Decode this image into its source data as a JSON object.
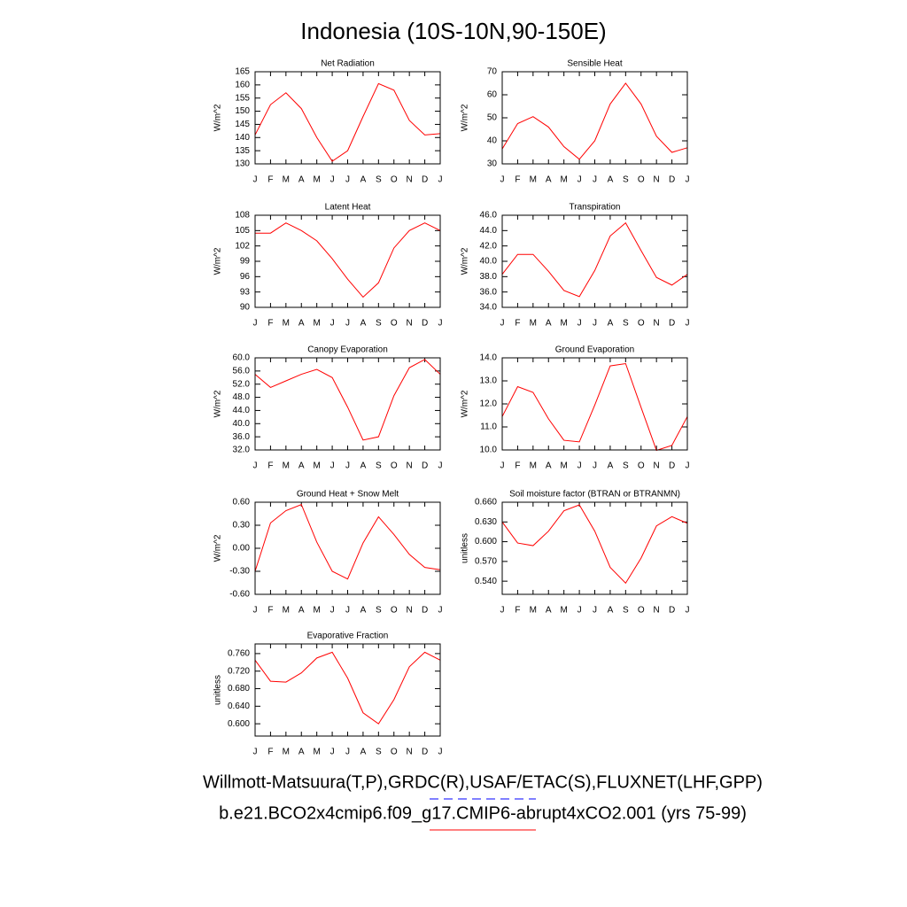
{
  "title": "Indonesia (10S-10N,90-150E)",
  "chart_data": [
    {
      "type": "line",
      "title": "Net Radiation",
      "ylabel": "W/m^2",
      "categories": [
        "J",
        "F",
        "M",
        "A",
        "M",
        "J",
        "J",
        "A",
        "S",
        "O",
        "N",
        "D",
        "J"
      ],
      "values": [
        141,
        152.5,
        157,
        151,
        140,
        131,
        135,
        148,
        160.5,
        158,
        146.5,
        141,
        141.5
      ],
      "color": "#ff0000",
      "ylim": [
        130,
        165
      ],
      "yticks": [
        130,
        135,
        140,
        145,
        150,
        155,
        160,
        165
      ]
    },
    {
      "type": "line",
      "title": "Sensible Heat",
      "ylabel": "W/m^2",
      "categories": [
        "J",
        "F",
        "M",
        "A",
        "M",
        "J",
        "J",
        "A",
        "S",
        "O",
        "N",
        "D",
        "J"
      ],
      "values": [
        36.5,
        47.5,
        50.5,
        46,
        37.5,
        32,
        40,
        56,
        65,
        56,
        42,
        35,
        37
      ],
      "color": "#ff0000",
      "ylim": [
        30,
        70
      ],
      "yticks": [
        30,
        40,
        50,
        60,
        70
      ]
    },
    {
      "type": "line",
      "title": "Latent Heat",
      "ylabel": "W/m^2",
      "categories": [
        "J",
        "F",
        "M",
        "A",
        "M",
        "J",
        "J",
        "A",
        "S",
        "O",
        "N",
        "D",
        "J"
      ],
      "values": [
        104.5,
        104.5,
        106.5,
        105,
        103,
        99.5,
        95.5,
        92,
        94.8,
        101.6,
        105,
        106.5,
        105
      ],
      "color": "#ff0000",
      "ylim": [
        90,
        108
      ],
      "yticks": [
        90,
        93,
        96,
        99,
        102,
        105,
        108
      ]
    },
    {
      "type": "line",
      "title": "Transpiration",
      "ylabel": "W/m^2",
      "categories": [
        "J",
        "F",
        "M",
        "A",
        "M",
        "J",
        "J",
        "A",
        "S",
        "O",
        "N",
        "D",
        "J"
      ],
      "values": [
        38.3,
        40.9,
        40.9,
        38.7,
        36.2,
        35.4,
        38.8,
        43.3,
        45,
        41.4,
        37.9,
        36.9,
        38.3
      ],
      "color": "#ff0000",
      "ylim": [
        34,
        46
      ],
      "yticks": [
        {
          "value": 34,
          "label": "34.0"
        },
        {
          "value": 36,
          "label": "36.0"
        },
        {
          "value": 38,
          "label": "38.0"
        },
        {
          "value": 40,
          "label": "40.0"
        },
        {
          "value": 42,
          "label": "42.0"
        },
        {
          "value": 44,
          "label": "44.0"
        },
        {
          "value": 46,
          "label": "46.0"
        }
      ]
    },
    {
      "type": "line",
      "title": "Canopy Evaporation",
      "ylabel": "W/m^2",
      "categories": [
        "J",
        "F",
        "M",
        "A",
        "M",
        "J",
        "J",
        "A",
        "S",
        "O",
        "N",
        "D",
        "J"
      ],
      "values": [
        55,
        51,
        53,
        55,
        56.5,
        54,
        45,
        35,
        36,
        48.5,
        57,
        59.5,
        55
      ],
      "color": "#ff0000",
      "ylim": [
        32,
        60
      ],
      "yticks": [
        {
          "value": 32,
          "label": "32.0"
        },
        {
          "value": 36,
          "label": "36.0"
        },
        {
          "value": 40,
          "label": "40.0"
        },
        {
          "value": 44,
          "label": "44.0"
        },
        {
          "value": 48,
          "label": "48.0"
        },
        {
          "value": 52,
          "label": "52.0"
        },
        {
          "value": 56,
          "label": "56.0"
        },
        {
          "value": 60,
          "label": "60.0"
        }
      ]
    },
    {
      "type": "line",
      "title": "Ground Evaporation",
      "ylabel": "W/m^2",
      "categories": [
        "J",
        "F",
        "M",
        "A",
        "M",
        "J",
        "J",
        "A",
        "S",
        "O",
        "N",
        "D",
        "J"
      ],
      "values": [
        11.45,
        12.75,
        12.5,
        11.35,
        10.42,
        10.35,
        11.95,
        13.65,
        13.75,
        11.85,
        9.98,
        10.2,
        11.45
      ],
      "color": "#ff0000",
      "ylim": [
        10,
        14
      ],
      "yticks": [
        {
          "value": 10,
          "label": "10.0"
        },
        {
          "value": 11,
          "label": "11.0"
        },
        {
          "value": 12,
          "label": "12.0"
        },
        {
          "value": 13,
          "label": "13.0"
        },
        {
          "value": 14,
          "label": "14.0"
        }
      ]
    },
    {
      "type": "line",
      "title": "Ground Heat + Snow Melt",
      "ylabel": "W/m^2",
      "categories": [
        "J",
        "F",
        "M",
        "A",
        "M",
        "J",
        "J",
        "A",
        "S",
        "O",
        "N",
        "D",
        "J"
      ],
      "values": [
        -0.3,
        0.33,
        0.49,
        0.57,
        0.08,
        -0.3,
        -0.4,
        0.07,
        0.41,
        0.18,
        -0.08,
        -0.25,
        -0.28
      ],
      "color": "#ff0000",
      "ylim": [
        -0.6,
        0.6
      ],
      "yticks": [
        {
          "value": -0.6,
          "label": "-0.60"
        },
        {
          "value": -0.3,
          "label": "-0.30"
        },
        {
          "value": 0,
          "label": "0.00"
        },
        {
          "value": 0.3,
          "label": "0.30"
        },
        {
          "value": 0.6,
          "label": "0.60"
        }
      ]
    },
    {
      "type": "line",
      "title": "Soil moisture factor (BTRAN or BTRANMN)",
      "ylabel": "unitless",
      "categories": [
        "J",
        "F",
        "M",
        "A",
        "M",
        "J",
        "J",
        "A",
        "S",
        "O",
        "N",
        "D",
        "J"
      ],
      "values": [
        0.63,
        0.598,
        0.594,
        0.616,
        0.647,
        0.656,
        0.616,
        0.561,
        0.537,
        0.575,
        0.624,
        0.638,
        0.628
      ],
      "color": "#ff0000",
      "ylim": [
        0.52,
        0.66
      ],
      "yticks": [
        {
          "value": 0.54,
          "label": "0.540"
        },
        {
          "value": 0.57,
          "label": "0.570"
        },
        {
          "value": 0.6,
          "label": "0.600"
        },
        {
          "value": 0.63,
          "label": "0.630"
        },
        {
          "value": 0.66,
          "label": "0.660"
        }
      ]
    },
    {
      "type": "line",
      "title": "Evaporative Fraction",
      "ylabel": "unitless",
      "categories": [
        "J",
        "F",
        "M",
        "A",
        "M",
        "J",
        "J",
        "A",
        "S",
        "O",
        "N",
        "D",
        "J"
      ],
      "values": [
        0.745,
        0.697,
        0.695,
        0.716,
        0.75,
        0.763,
        0.704,
        0.625,
        0.6,
        0.655,
        0.73,
        0.763,
        0.745
      ],
      "color": "#ff0000",
      "ylim": [
        0.572,
        0.782
      ],
      "yticks": [
        {
          "value": 0.6,
          "label": "0.600"
        },
        {
          "value": 0.64,
          "label": "0.640"
        },
        {
          "value": 0.68,
          "label": "0.680"
        },
        {
          "value": 0.72,
          "label": "0.720"
        },
        {
          "value": 0.76,
          "label": "0.760"
        }
      ]
    }
  ],
  "legend": [
    {
      "name": "Willmott-Matsuura(T,P),GRDC(R),USAF/ETAC(S),FLUXNET(LHF,GPP)",
      "color": "#0000ff",
      "line_style": "dashed"
    },
    {
      "name": "b.e21.BCO2x4cmip6.f09_g17.CMIP6-abrupt4xCO2.001 (yrs 75-99)",
      "color": "#ff0000",
      "line_style": "solid"
    }
  ]
}
